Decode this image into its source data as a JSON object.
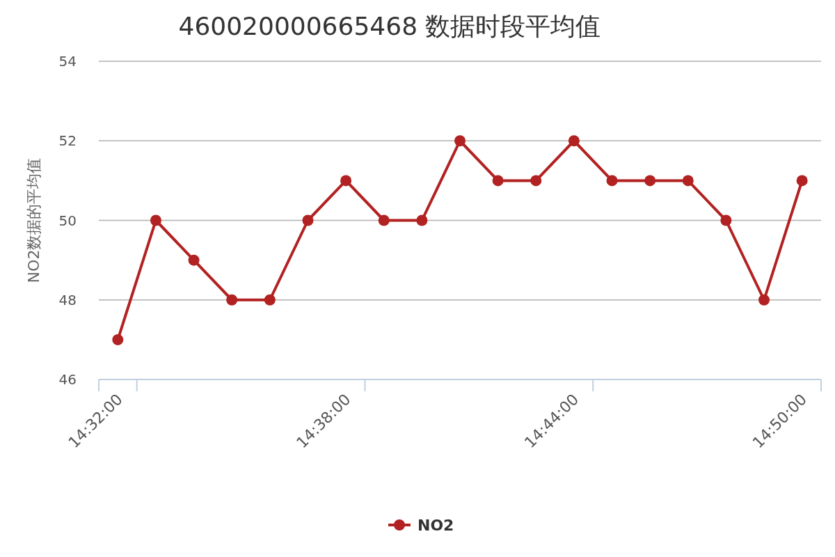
{
  "chart_data": {
    "type": "line",
    "title": "460020000665468 数据时段平均值",
    "ylabel": "NO2数据的平均值",
    "categories": [
      "14:32:00",
      null,
      null,
      null,
      null,
      null,
      "14:38:00",
      null,
      null,
      null,
      null,
      null,
      "14:44:00",
      null,
      null,
      null,
      null,
      null,
      "14:50:00"
    ],
    "series": [
      {
        "name": "NO2",
        "color": "#b22222",
        "values": [
          47,
          50,
          49,
          48,
          48,
          50,
          51,
          50,
          50,
          52,
          51,
          51,
          52,
          51,
          51,
          51,
          50,
          48,
          51
        ]
      }
    ],
    "ylim": [
      46,
      54
    ],
    "yticks": [
      46,
      48,
      50,
      52,
      54
    ],
    "grid": "y",
    "legend": "bottom",
    "marker": "circle",
    "line_style": "solid"
  }
}
